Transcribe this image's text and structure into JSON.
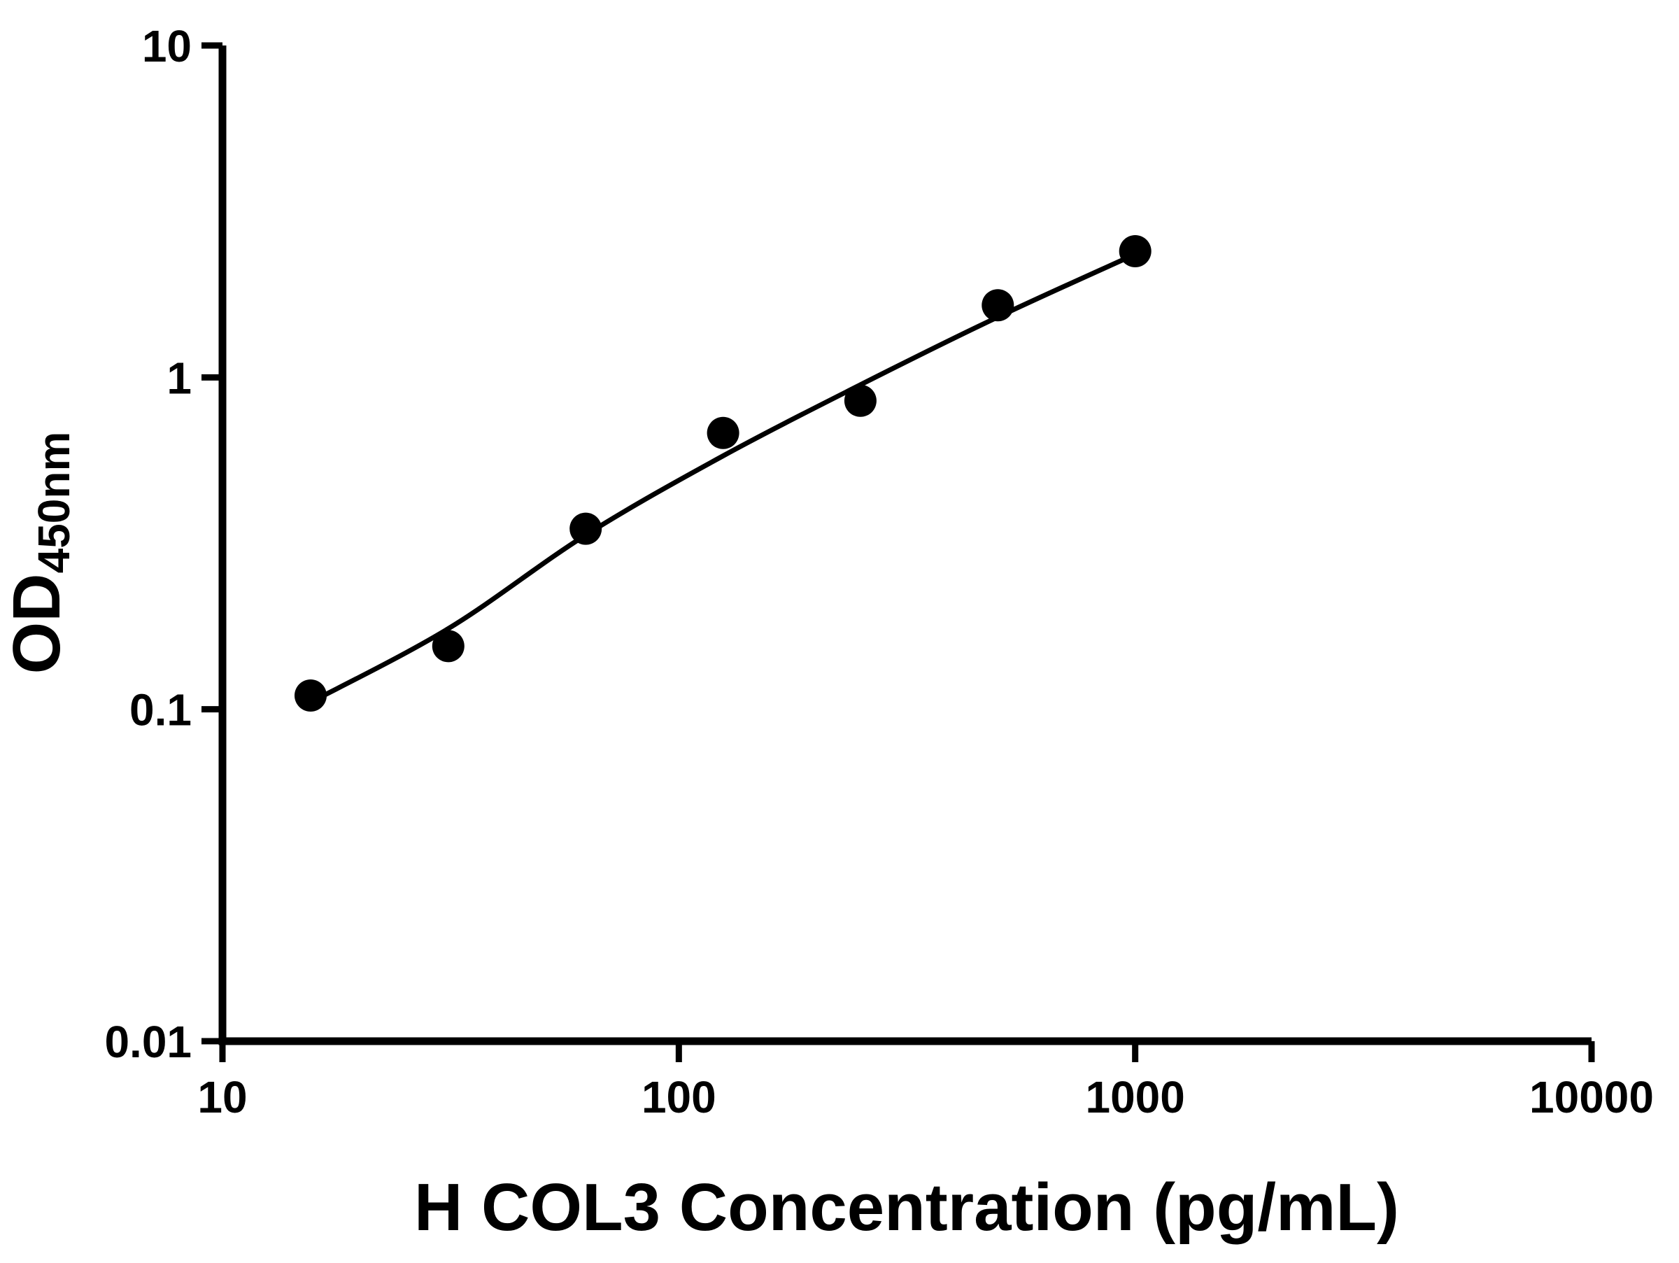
{
  "figure": {
    "background": "#ffffff",
    "ink_color": "#000000"
  },
  "chart_data": {
    "type": "scatter",
    "title": "",
    "xlabel": "H COL3 Concentration (pg/mL)",
    "ylabel_main": "OD",
    "ylabel_sub": "450nm",
    "xscale": "log",
    "yscale": "log",
    "xlim": [
      10,
      10000
    ],
    "ylim": [
      0.01,
      10
    ],
    "xtick_values": [
      10,
      100,
      1000,
      10000
    ],
    "xtick_labels": [
      "10",
      "100",
      "1000",
      "10000"
    ],
    "ytick_values": [
      0.01,
      0.1,
      1,
      10
    ],
    "ytick_labels": [
      "0.01",
      "0.1",
      "1",
      "10"
    ],
    "grid": false,
    "legend": false,
    "series": [
      {
        "name": "standard-data-points",
        "type": "scatter",
        "marker": "filled-circle",
        "color": "#000000",
        "x": [
          15.6,
          31.25,
          62.5,
          125,
          250,
          500,
          1000
        ],
        "y": [
          0.11,
          0.155,
          0.35,
          0.68,
          0.85,
          1.65,
          2.4
        ]
      },
      {
        "name": "fit-curve",
        "type": "line",
        "color": "#000000",
        "x": [
          15.6,
          31.25,
          62.5,
          125,
          250,
          500,
          1000
        ],
        "y": [
          0.105,
          0.175,
          0.335,
          0.58,
          0.95,
          1.52,
          2.35
        ]
      }
    ]
  }
}
